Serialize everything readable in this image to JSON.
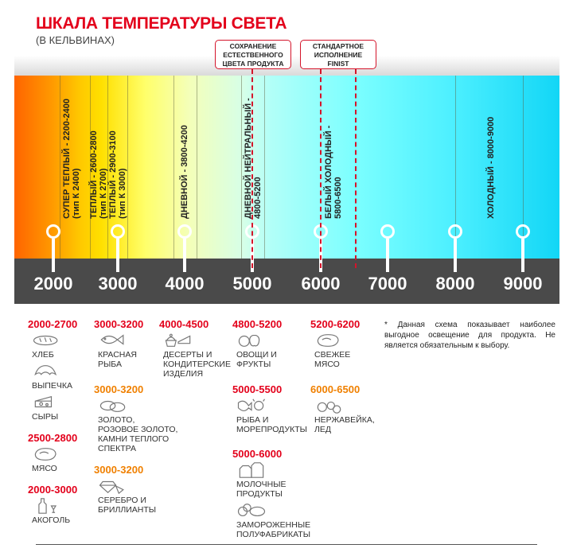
{
  "header": {
    "title": "ШКАЛА ТЕМПЕРАТУРЫ СВЕТА",
    "subtitle": "(В КЕЛЬВИНАХ)"
  },
  "callouts": [
    {
      "text": "СОХРАНЕНИЕ\nЕСТЕСТВЕННОГО\nЦВЕТА ПРОДУКТА"
    },
    {
      "text": "СТАНДАРТНОЕ\nИСПОЛНЕНИЕ\nFINIST"
    }
  ],
  "bands": [
    {
      "label": "СУПЕР ТЕПЛЫЙ - 2200-2400\n(тип К 2400)"
    },
    {
      "label": "ТЕПЛЫЙ - 2600-2800\n(тип К 2700)"
    },
    {
      "label": "ТЕПЛЫЙ - 2900-3100\n(тип К 3000)"
    },
    {
      "label": "ДНЕВНОЙ - 3800-4200"
    },
    {
      "label": "ДНЕВНОЙ НЕЙТРАЛЬНЫЙ -\n4800-5200"
    },
    {
      "label": "БЕЛЫЙ ХОЛОДНЫЙ -\n5800-6500"
    },
    {
      "label": "ХОЛОДНЫЙ - 8000-9000"
    }
  ],
  "scale": [
    "2000",
    "3000",
    "4000",
    "5000",
    "6000",
    "7000",
    "8000",
    "9000"
  ],
  "colors": {
    "red": "#e3001b",
    "orange": "#f08000",
    "scale_bar": "#4a4a4a"
  },
  "groups": [
    {
      "range": "2000-2700",
      "color": "red",
      "items": [
        {
          "label": "ХЛЕБ",
          "icon": "bread-icon"
        },
        {
          "label": "ВЫПЕЧКА",
          "icon": "croissant-icon"
        },
        {
          "label": "СЫРЫ",
          "icon": "cheese-icon"
        }
      ]
    },
    {
      "range": "2500-2800",
      "color": "red",
      "items": [
        {
          "label": "МЯСО",
          "icon": "steak-icon"
        }
      ]
    },
    {
      "range": "2000-3000",
      "color": "red",
      "items": [
        {
          "label": "АКОГОЛЬ",
          "icon": "bottle-icon"
        }
      ]
    },
    {
      "range": "3000-3200",
      "color": "red",
      "items": [
        {
          "label": "КРАСНАЯ\nРЫБА",
          "icon": "fish-icon"
        }
      ]
    },
    {
      "range": "3000-3200",
      "color": "orange",
      "items": [
        {
          "label": "ЗОЛОТО,\nРОЗОВОЕ ЗОЛОТО,\nКАМНИ ТЕПЛОГО\nСПЕКТРА",
          "icon": "rings-icon"
        }
      ]
    },
    {
      "range": "3000-3200",
      "color": "orange",
      "items": [
        {
          "label": "СЕРЕБРО И\nБРИЛЛИАНТЫ",
          "icon": "diamond-icon"
        }
      ]
    },
    {
      "range": "4000-4500",
      "color": "red",
      "items": [
        {
          "label": "ДЕСЕРТЫ И\nКОНДИТЕРСКИЕ\nИЗДЕЛИЯ",
          "icon": "cake-icon"
        }
      ]
    },
    {
      "range": "4800-5200",
      "color": "red",
      "items": [
        {
          "label": "ОВОЩИ И\nФРУКТЫ",
          "icon": "fruit-icon"
        }
      ]
    },
    {
      "range": "5000-5500",
      "color": "red",
      "items": [
        {
          "label": "РЫБА И\nМОРЕПРОДУКТЫ",
          "icon": "seafood-icon"
        }
      ]
    },
    {
      "range": "5000-6000",
      "color": "red",
      "items": [
        {
          "label": "МОЛОЧНЫЕ ПРОДУКТЫ",
          "icon": "milk-icon"
        },
        {
          "label": "ЗАМОРОЖЕННЫЕ\nПОЛУФАБРИКАТЫ",
          "icon": "frozen-food-icon"
        }
      ]
    },
    {
      "range": "5200-6200",
      "color": "red",
      "items": [
        {
          "label": "СВЕЖЕЕ\nМЯСО",
          "icon": "steak-icon"
        }
      ]
    },
    {
      "range": "6000-6500",
      "color": "orange",
      "items": [
        {
          "label": "НЕРЖАВЕЙКА,\nЛЕД",
          "icon": "ice-icon"
        }
      ]
    }
  ],
  "note": "* Данная схема показывает наиболее выгодное освещение для продукта. Не является обязательным к выбору."
}
